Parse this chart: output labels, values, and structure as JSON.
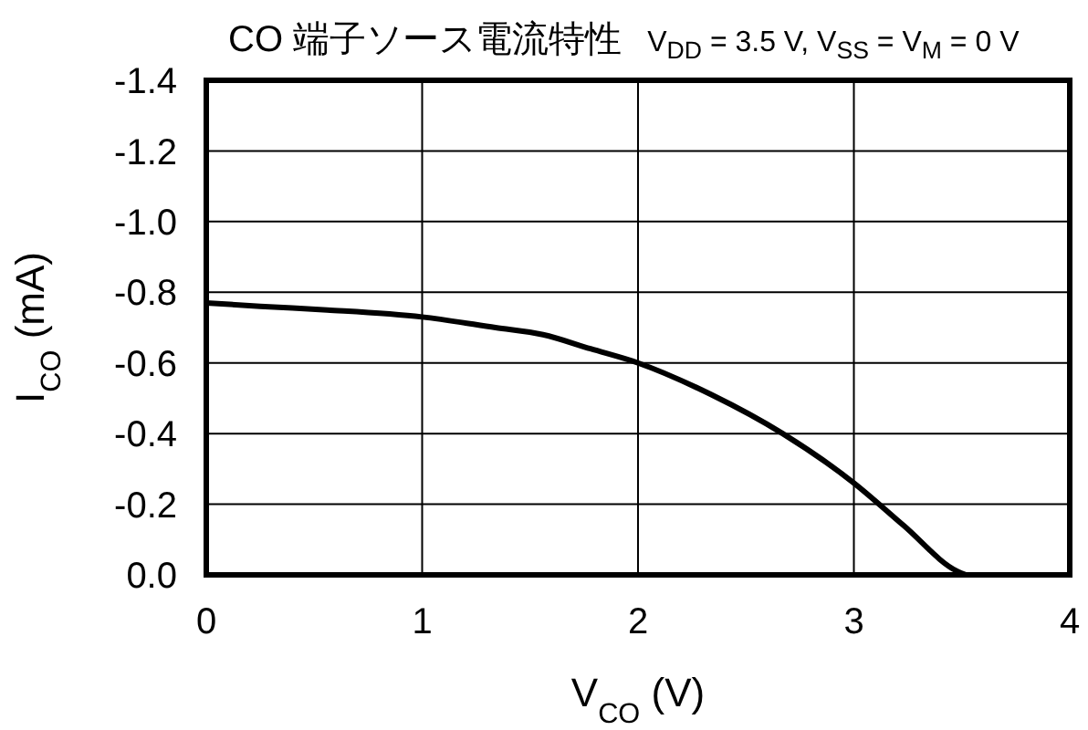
{
  "chart_data": {
    "type": "line",
    "title": "CO 端子ソース電流特性",
    "subtitle": "V$_{DD}$ = 3.5 V, V$_{SS}$ = V$_{M}$ = 0 V",
    "xlabel": "V$_{CO}$ (V)",
    "ylabel": "I$_{CO}$ (mA)",
    "x": [
      0,
      0.25,
      0.56,
      1.0,
      1.34,
      1.56,
      1.78,
      2.0,
      2.34,
      2.67,
      3.0,
      3.23,
      3.48,
      3.52
    ],
    "series": [
      {
        "color": "#000000",
        "values": [
          -0.77,
          -0.76,
          -0.75,
          -0.73,
          -0.7,
          -0.68,
          -0.64,
          -0.6,
          -0.51,
          -0.4,
          -0.26,
          -0.14,
          -0.01,
          0.0
        ]
      }
    ],
    "xlim": [
      0,
      4
    ],
    "xticks": [
      0,
      1,
      2,
      3,
      4
    ],
    "ylim": [
      0,
      -1.4
    ],
    "yticks": [
      {
        "value": 0,
        "label": "0.0"
      },
      {
        "value": -0.2,
        "label": "-0.2"
      },
      {
        "value": -0.4,
        "label": "-0.4"
      },
      {
        "value": -0.6,
        "label": "-0.6"
      },
      {
        "value": -0.8,
        "label": "-0.8"
      },
      {
        "value": -1.0,
        "label": "-1.0"
      },
      {
        "value": -1.2,
        "label": "-1.2"
      },
      {
        "value": -1.4,
        "label": "-1.4"
      }
    ],
    "grid": true,
    "legend": false,
    "marker": "none",
    "line_style": "solid"
  }
}
